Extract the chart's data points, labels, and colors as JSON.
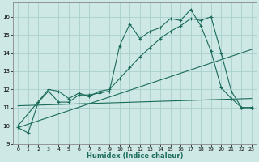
{
  "xlabel": "Humidex (Indice chaleur)",
  "bg_color": "#cde8e5",
  "grid_color": "#aacfcc",
  "line_color": "#1a6b5a",
  "xlim": [
    -0.5,
    23.5
  ],
  "ylim": [
    9.3,
    16.8
  ],
  "yticks": [
    9,
    10,
    11,
    12,
    13,
    14,
    15,
    16
  ],
  "xticks": [
    0,
    1,
    2,
    3,
    4,
    5,
    6,
    7,
    8,
    9,
    10,
    11,
    12,
    13,
    14,
    15,
    16,
    17,
    18,
    19,
    20,
    21,
    22,
    23
  ],
  "line1_x": [
    0,
    1,
    2,
    3,
    4,
    5,
    6,
    7,
    8,
    9,
    10,
    11,
    12,
    13,
    14,
    15,
    16,
    17,
    18,
    19,
    20,
    21,
    22,
    23
  ],
  "line1_y": [
    9.9,
    9.6,
    11.3,
    11.9,
    11.3,
    11.3,
    11.7,
    11.7,
    11.8,
    11.9,
    14.4,
    15.6,
    14.8,
    15.2,
    15.4,
    15.9,
    15.8,
    16.4,
    15.5,
    14.1,
    12.1,
    11.5,
    11.0,
    11.0
  ],
  "line2_x": [
    0,
    3,
    4,
    5,
    6,
    7,
    8,
    9,
    10,
    11,
    12,
    13,
    14,
    15,
    16,
    17,
    18,
    19,
    20,
    21,
    22,
    23
  ],
  "line2_y": [
    10.0,
    12.0,
    11.9,
    11.5,
    11.8,
    11.6,
    11.9,
    12.0,
    12.6,
    13.2,
    13.8,
    14.3,
    14.8,
    15.2,
    15.5,
    15.9,
    15.8,
    16.0,
    14.0,
    11.9,
    11.0,
    11.0
  ],
  "line3_x": [
    0,
    23
  ],
  "line3_y": [
    9.9,
    14.2
  ],
  "line4_x": [
    0,
    23
  ],
  "line4_y": [
    11.1,
    11.5
  ]
}
